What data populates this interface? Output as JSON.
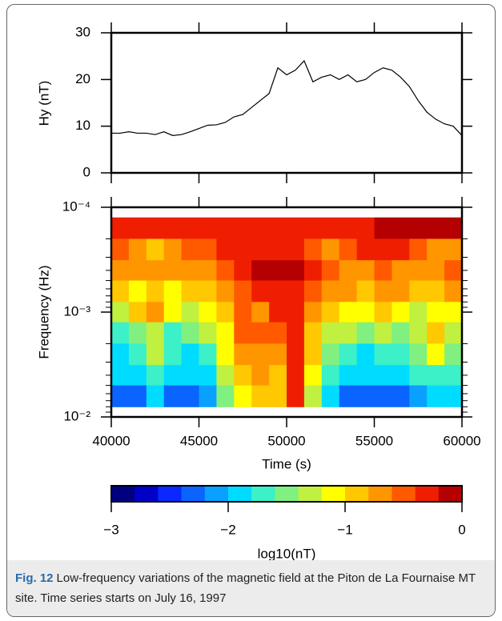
{
  "chart_data": [
    {
      "type": "line",
      "ylabel": "Hy (nT)",
      "color": "#000000",
      "x": [
        40000,
        40500,
        41000,
        41500,
        42000,
        42500,
        43000,
        43500,
        44000,
        44500,
        45000,
        45500,
        46000,
        46500,
        47000,
        47500,
        48000,
        48500,
        49000,
        49500,
        50000,
        50500,
        51000,
        51500,
        52000,
        52500,
        53000,
        53500,
        54000,
        54500,
        55000,
        55500,
        56000,
        56500,
        57000,
        57500,
        58000,
        58500,
        59000,
        59500,
        60000
      ],
      "values": [
        8.5,
        8.5,
        8.8,
        8.5,
        8.5,
        8.2,
        8.8,
        8,
        8.2,
        8.8,
        9.5,
        10.2,
        10.3,
        10.8,
        12,
        12.5,
        14,
        15.5,
        17,
        22.5,
        21,
        22,
        24,
        19.5,
        20.5,
        21,
        20,
        21,
        19.5,
        20,
        21.5,
        22.5,
        22,
        20.5,
        18.5,
        15.5,
        13,
        11.5,
        10.5,
        10,
        8
      ],
      "xlim": [
        40000,
        60000
      ],
      "xticks": [
        40000,
        45000,
        50000,
        55000,
        60000
      ],
      "ylim": [
        0,
        30
      ],
      "yticks": [
        0,
        10,
        20,
        30
      ]
    },
    {
      "type": "heatmap",
      "ylabel": "Frequency (Hz)",
      "xlabel": "Time (s)",
      "log_y": true,
      "x_edges": [
        40000,
        41000,
        42000,
        43000,
        44000,
        45000,
        46000,
        47000,
        48000,
        49000,
        50000,
        51000,
        52000,
        53000,
        54000,
        55000,
        56000,
        57000,
        58000,
        59000,
        60000
      ],
      "y_edges": [
        0.000125,
        0.0002,
        0.00032,
        0.0005,
        0.0008,
        0.00125,
        0.002,
        0.0032,
        0.005,
        0.008
      ],
      "z": [
        [
          -0.3,
          -0.3,
          -0.3,
          -0.3,
          -0.35,
          -0.3,
          -0.3,
          -0.25,
          -0.25,
          -0.25,
          -0.25,
          -0.3,
          -0.3,
          -0.25,
          -0.2,
          -0.15,
          -0.15,
          -0.15,
          -0.15,
          -0.15
        ],
        [
          -0.5,
          -0.7,
          -0.9,
          -0.8,
          -0.5,
          -0.45,
          -0.4,
          -0.4,
          -0.35,
          -0.35,
          -0.4,
          -0.5,
          -0.8,
          -0.5,
          -0.4,
          -0.4,
          -0.4,
          -0.5,
          -0.8,
          -0.6
        ],
        [
          -0.7,
          -0.6,
          -0.6,
          -0.7,
          -0.6,
          -0.6,
          -0.5,
          -0.3,
          -0.1,
          -0.1,
          -0.1,
          -0.3,
          -0.5,
          -0.6,
          -0.6,
          -0.5,
          -0.6,
          -0.8,
          -0.6,
          -0.5
        ],
        [
          -1.0,
          -1.1,
          -1.0,
          -1.1,
          -1.0,
          -1.0,
          -0.8,
          -0.5,
          -0.3,
          -0.2,
          -0.3,
          -0.5,
          -0.6,
          -0.7,
          -0.9,
          -0.8,
          -0.7,
          -0.9,
          -1.0,
          -0.8
        ],
        [
          -1.3,
          -0.9,
          -0.8,
          -1.2,
          -1.3,
          -1.2,
          -0.9,
          -0.5,
          -0.6,
          -0.4,
          -0.4,
          -0.7,
          -0.9,
          -1.1,
          -1.2,
          -1.0,
          -1.2,
          -1.3,
          -1.2,
          -1.1
        ],
        [
          -1.6,
          -1.5,
          -1.4,
          -1.6,
          -1.5,
          -1.4,
          -1.1,
          -0.5,
          -0.45,
          -0.5,
          -0.4,
          -0.9,
          -1.3,
          -1.4,
          -1.5,
          -1.4,
          -1.5,
          -1.4,
          -1.0,
          -1.3
        ],
        [
          -1.8,
          -1.6,
          -1.3,
          -1.7,
          -1.8,
          -1.6,
          -1.2,
          -0.7,
          -0.6,
          -0.8,
          -0.4,
          -1.0,
          -1.5,
          -1.7,
          -1.8,
          -1.6,
          -1.7,
          -1.5,
          -1.2,
          -1.5
        ],
        [
          -1.9,
          -1.8,
          -1.6,
          -1.9,
          -2.0,
          -1.8,
          -1.3,
          -0.9,
          -0.8,
          -0.9,
          -0.3,
          -1.1,
          -1.7,
          -1.9,
          -2.0,
          -1.8,
          -1.9,
          -1.7,
          -1.6,
          -1.7
        ],
        [
          -2.2,
          -2.3,
          -2.0,
          -2.2,
          -2.3,
          -2.1,
          -1.5,
          -1.1,
          -1.0,
          -1.0,
          -0.3,
          -1.3,
          -1.9,
          -2.2,
          -2.3,
          -2.2,
          -2.3,
          -2.1,
          -2.0,
          -2.0
        ]
      ],
      "xlim": [
        40000,
        60000
      ],
      "xticks": [
        40000,
        45000,
        50000,
        55000,
        60000
      ],
      "ylim": [
        0.0001,
        0.01
      ],
      "yticks": [
        {
          "value": 0.0001,
          "label": "10⁻⁴"
        },
        {
          "value": 0.001,
          "label": "10⁻³"
        },
        {
          "value": 0.01,
          "label": "10⁻²"
        }
      ],
      "minor_yticks": [
        0.0002,
        0.0003,
        0.0004,
        0.0005,
        0.0006,
        0.0007,
        0.0008,
        0.0009,
        0.002,
        0.003,
        0.004,
        0.005,
        0.006,
        0.007,
        0.008,
        0.009
      ],
      "colorbar": {
        "label": "log10(nT)",
        "lim": [
          -3,
          0
        ],
        "ticks": [
          {
            "value": -3,
            "label": "−3"
          },
          {
            "value": -2,
            "label": "−2"
          },
          {
            "value": -1,
            "label": "−1"
          },
          0
        ],
        "colors": [
          "#000080",
          "#0000c8",
          "#0a28ff",
          "#0a64ff",
          "#0aa0ff",
          "#00dcff",
          "#3cf0c8",
          "#80f080",
          "#c0f040",
          "#ffff00",
          "#ffc800",
          "#ff9600",
          "#ff5a00",
          "#f01e00",
          "#b40000"
        ]
      }
    }
  ],
  "caption": {
    "label": "Fig. 12",
    "text": "Low-frequency variations of the magnetic field at the Piton de La Fournaise MT site. Time series starts on July 16, 1997"
  }
}
